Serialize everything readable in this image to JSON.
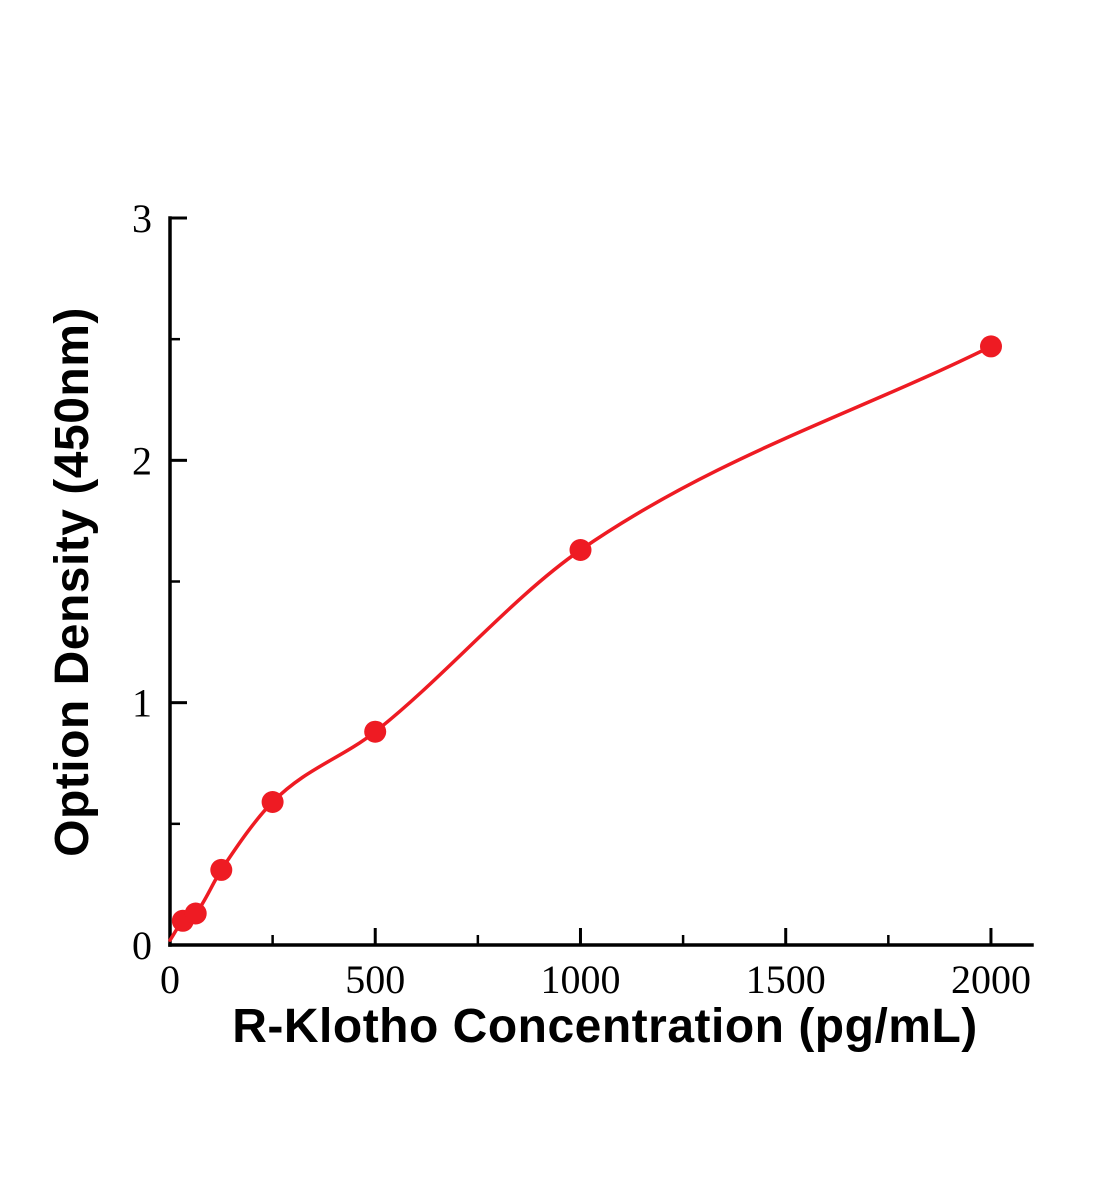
{
  "chart_data": {
    "type": "scatter",
    "title": "",
    "xlabel": "R-Klotho Concentration (pg/mL)",
    "ylabel": "Option Density (450nm)",
    "x": [
      31.25,
      62.5,
      125,
      250,
      500,
      1000,
      2000
    ],
    "y": [
      0.1,
      0.13,
      0.31,
      0.59,
      0.88,
      1.63,
      2.47
    ],
    "curve_start": {
      "x": 0,
      "y": 0.02
    },
    "xlim": [
      0,
      2100
    ],
    "ylim": [
      0,
      3
    ],
    "x_major_ticks": [
      0,
      500,
      1000,
      1500,
      2000
    ],
    "x_minor_step": 250,
    "y_major_ticks": [
      0,
      1,
      2,
      3
    ],
    "y_minor_step": 0.5,
    "point_color": "#ee1b23",
    "line_color": "#ee1b23",
    "axis_color": "#000000",
    "grid": false,
    "legend_position": "none"
  }
}
